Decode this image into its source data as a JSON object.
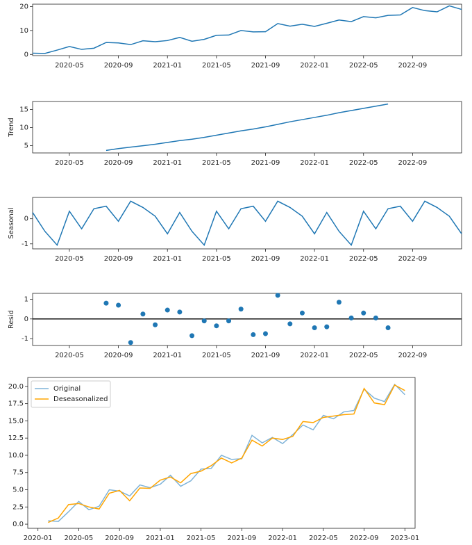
{
  "chart_data": [
    {
      "type": "line",
      "color": "#1f77b4",
      "x": [
        "2020-02",
        "2020-03",
        "2020-04",
        "2020-05",
        "2020-06",
        "2020-07",
        "2020-08",
        "2020-09",
        "2020-10",
        "2020-11",
        "2020-12",
        "2021-01",
        "2021-02",
        "2021-03",
        "2021-04",
        "2021-05",
        "2021-06",
        "2021-07",
        "2021-08",
        "2021-09",
        "2021-10",
        "2021-11",
        "2021-12",
        "2022-01",
        "2022-02",
        "2022-03",
        "2022-04",
        "2022-05",
        "2022-06",
        "2022-07",
        "2022-08",
        "2022-09",
        "2022-10",
        "2022-11",
        "2022-12",
        "2023-01"
      ],
      "values": [
        0.5,
        0.4,
        1.8,
        3.3,
        2.1,
        2.6,
        5.0,
        4.8,
        4.1,
        5.7,
        5.3,
        5.8,
        7.1,
        5.5,
        6.3,
        8.0,
        8.1,
        10.0,
        9.4,
        9.5,
        12.9,
        11.8,
        12.6,
        11.7,
        13.0,
        14.4,
        13.7,
        15.8,
        15.3,
        16.3,
        16.5,
        19.6,
        18.3,
        17.8,
        20.3,
        18.8
      ],
      "xlim": [
        "2020-02",
        "2023-01"
      ],
      "xticks": [
        "2020-05",
        "2020-09",
        "2021-01",
        "2021-05",
        "2021-09",
        "2022-01",
        "2022-05",
        "2022-09"
      ],
      "ylim": [
        -0.5,
        21
      ],
      "yticks": [
        0,
        10,
        20
      ]
    },
    {
      "type": "line",
      "color": "#1f77b4",
      "y_label": "Trend",
      "x": [
        "2020-02",
        "2020-03",
        "2020-04",
        "2020-05",
        "2020-06",
        "2020-07",
        "2020-08",
        "2020-09",
        "2020-10",
        "2020-11",
        "2020-12",
        "2021-01",
        "2021-02",
        "2021-03",
        "2021-04",
        "2021-05",
        "2021-06",
        "2021-07",
        "2021-08",
        "2021-09",
        "2021-10",
        "2021-11",
        "2021-12",
        "2022-01",
        "2022-02",
        "2022-03",
        "2022-04",
        "2022-05",
        "2022-06",
        "2022-07",
        "2022-08",
        "2022-09",
        "2022-10",
        "2022-11",
        "2022-12",
        "2023-01"
      ],
      "values": [
        null,
        null,
        null,
        null,
        null,
        null,
        3.7,
        4.2,
        4.6,
        5.0,
        5.4,
        5.9,
        6.4,
        6.8,
        7.3,
        7.9,
        8.5,
        9.1,
        9.6,
        10.2,
        10.9,
        11.6,
        12.2,
        12.8,
        13.4,
        14.1,
        14.7,
        15.3,
        15.9,
        16.5,
        null,
        null,
        null,
        null,
        null,
        null
      ],
      "xlim": [
        "2020-02",
        "2023-01"
      ],
      "xticks": [
        "2020-05",
        "2020-09",
        "2021-01",
        "2021-05",
        "2021-09",
        "2022-01",
        "2022-05",
        "2022-09"
      ],
      "ylim": [
        3,
        17.2
      ],
      "yticks": [
        5,
        10,
        15
      ]
    },
    {
      "type": "line",
      "color": "#1f77b4",
      "y_label": "Seasonal",
      "x": [
        "2020-02",
        "2020-03",
        "2020-04",
        "2020-05",
        "2020-06",
        "2020-07",
        "2020-08",
        "2020-09",
        "2020-10",
        "2020-11",
        "2020-12",
        "2021-01",
        "2021-02",
        "2021-03",
        "2021-04",
        "2021-05",
        "2021-06",
        "2021-07",
        "2021-08",
        "2021-09",
        "2021-10",
        "2021-11",
        "2021-12",
        "2022-01",
        "2022-02",
        "2022-03",
        "2022-04",
        "2022-05",
        "2022-06",
        "2022-07",
        "2022-08",
        "2022-09",
        "2022-10",
        "2022-11",
        "2022-12",
        "2023-01"
      ],
      "values": [
        0.25,
        -0.5,
        -1.05,
        0.3,
        -0.4,
        0.4,
        0.5,
        -0.1,
        0.7,
        0.45,
        0.1,
        -0.6,
        0.25,
        -0.5,
        -1.05,
        0.3,
        -0.4,
        0.4,
        0.5,
        -0.1,
        0.7,
        0.45,
        0.1,
        -0.6,
        0.25,
        -0.5,
        -1.05,
        0.3,
        -0.4,
        0.4,
        0.5,
        -0.1,
        0.7,
        0.45,
        0.1,
        -0.6
      ],
      "xlim": [
        "2020-02",
        "2023-01"
      ],
      "xticks": [
        "2020-05",
        "2020-09",
        "2021-01",
        "2021-05",
        "2021-09",
        "2022-01",
        "2022-05",
        "2022-09"
      ],
      "ylim": [
        -1.2,
        0.85
      ],
      "yticks": [
        -1,
        0
      ]
    },
    {
      "type": "scatter",
      "color": "#1f77b4",
      "y_label": "Resid",
      "zero_line": true,
      "x": [
        "2020-02",
        "2020-03",
        "2020-04",
        "2020-05",
        "2020-06",
        "2020-07",
        "2020-08",
        "2020-09",
        "2020-10",
        "2020-11",
        "2020-12",
        "2021-01",
        "2021-02",
        "2021-03",
        "2021-04",
        "2021-05",
        "2021-06",
        "2021-07",
        "2021-08",
        "2021-09",
        "2021-10",
        "2021-11",
        "2021-12",
        "2022-01",
        "2022-02",
        "2022-03",
        "2022-04",
        "2022-05",
        "2022-06",
        "2022-07",
        "2022-08",
        "2022-09",
        "2022-10",
        "2022-11",
        "2022-12",
        "2023-01"
      ],
      "values": [
        null,
        null,
        null,
        null,
        null,
        null,
        0.8,
        0.7,
        -1.2,
        0.25,
        -0.3,
        0.45,
        0.35,
        -0.85,
        -0.1,
        -0.35,
        -0.1,
        0.5,
        -0.8,
        -0.75,
        1.2,
        -0.25,
        0.3,
        -0.45,
        -0.4,
        0.85,
        0.05,
        0.3,
        0.05,
        -0.45,
        null,
        null,
        null,
        null,
        null,
        null
      ],
      "xlim": [
        "2020-02",
        "2023-01"
      ],
      "xticks": [
        "2020-05",
        "2020-09",
        "2021-01",
        "2021-05",
        "2021-09",
        "2022-01",
        "2022-05",
        "2022-09"
      ],
      "ylim": [
        -1.35,
        1.3
      ],
      "yticks": [
        -1,
        0,
        1
      ]
    },
    {
      "type": "line",
      "legend": "upper left",
      "x": [
        "2020-02",
        "2020-03",
        "2020-04",
        "2020-05",
        "2020-06",
        "2020-07",
        "2020-08",
        "2020-09",
        "2020-10",
        "2020-11",
        "2020-12",
        "2021-01",
        "2021-02",
        "2021-03",
        "2021-04",
        "2021-05",
        "2021-06",
        "2021-07",
        "2021-08",
        "2021-09",
        "2021-10",
        "2021-11",
        "2021-12",
        "2022-01",
        "2022-02",
        "2022-03",
        "2022-04",
        "2022-05",
        "2022-06",
        "2022-07",
        "2022-08",
        "2022-09",
        "2022-10",
        "2022-11",
        "2022-12",
        "2023-01"
      ],
      "series": [
        {
          "name": "Original",
          "color": "#7fb3d8",
          "values": [
            0.5,
            0.4,
            1.8,
            3.3,
            2.1,
            2.6,
            5.0,
            4.8,
            4.1,
            5.7,
            5.3,
            5.8,
            7.1,
            5.5,
            6.3,
            8.0,
            8.1,
            10.0,
            9.4,
            9.5,
            12.9,
            11.8,
            12.6,
            11.7,
            13.0,
            14.4,
            13.7,
            15.8,
            15.3,
            16.3,
            16.5,
            19.6,
            18.3,
            17.8,
            20.3,
            18.8
          ]
        },
        {
          "name": "Deseasonalized",
          "color": "#ffa500",
          "values": [
            0.25,
            0.9,
            2.85,
            3.0,
            2.5,
            2.2,
            4.5,
            4.9,
            3.4,
            5.25,
            5.2,
            6.4,
            6.85,
            6.0,
            7.35,
            7.7,
            8.5,
            9.6,
            8.9,
            9.6,
            12.2,
            11.35,
            12.5,
            12.3,
            12.75,
            14.9,
            14.75,
            15.5,
            15.7,
            15.9,
            16.0,
            19.7,
            17.6,
            17.35,
            20.2,
            19.4
          ]
        }
      ],
      "xlim": [
        "2019-12",
        "2023-02"
      ],
      "xticks": [
        "2020-01",
        "2020-05",
        "2020-09",
        "2021-01",
        "2021-05",
        "2021-09",
        "2022-01",
        "2022-05",
        "2022-09",
        "2023-01"
      ],
      "ylim": [
        -0.6,
        21.3
      ],
      "yticks": [
        {
          "value": 0,
          "label": "0.0"
        },
        {
          "value": 2.5,
          "label": "2.5"
        },
        {
          "value": 5,
          "label": "5.0"
        },
        {
          "value": 7.5,
          "label": "7.5"
        },
        {
          "value": 10,
          "label": "10.0"
        },
        {
          "value": 12.5,
          "label": "12.5"
        },
        {
          "value": 15,
          "label": "15.0"
        },
        {
          "value": 17.5,
          "label": "17.5"
        },
        {
          "value": 20,
          "label": "20.0"
        }
      ]
    }
  ]
}
